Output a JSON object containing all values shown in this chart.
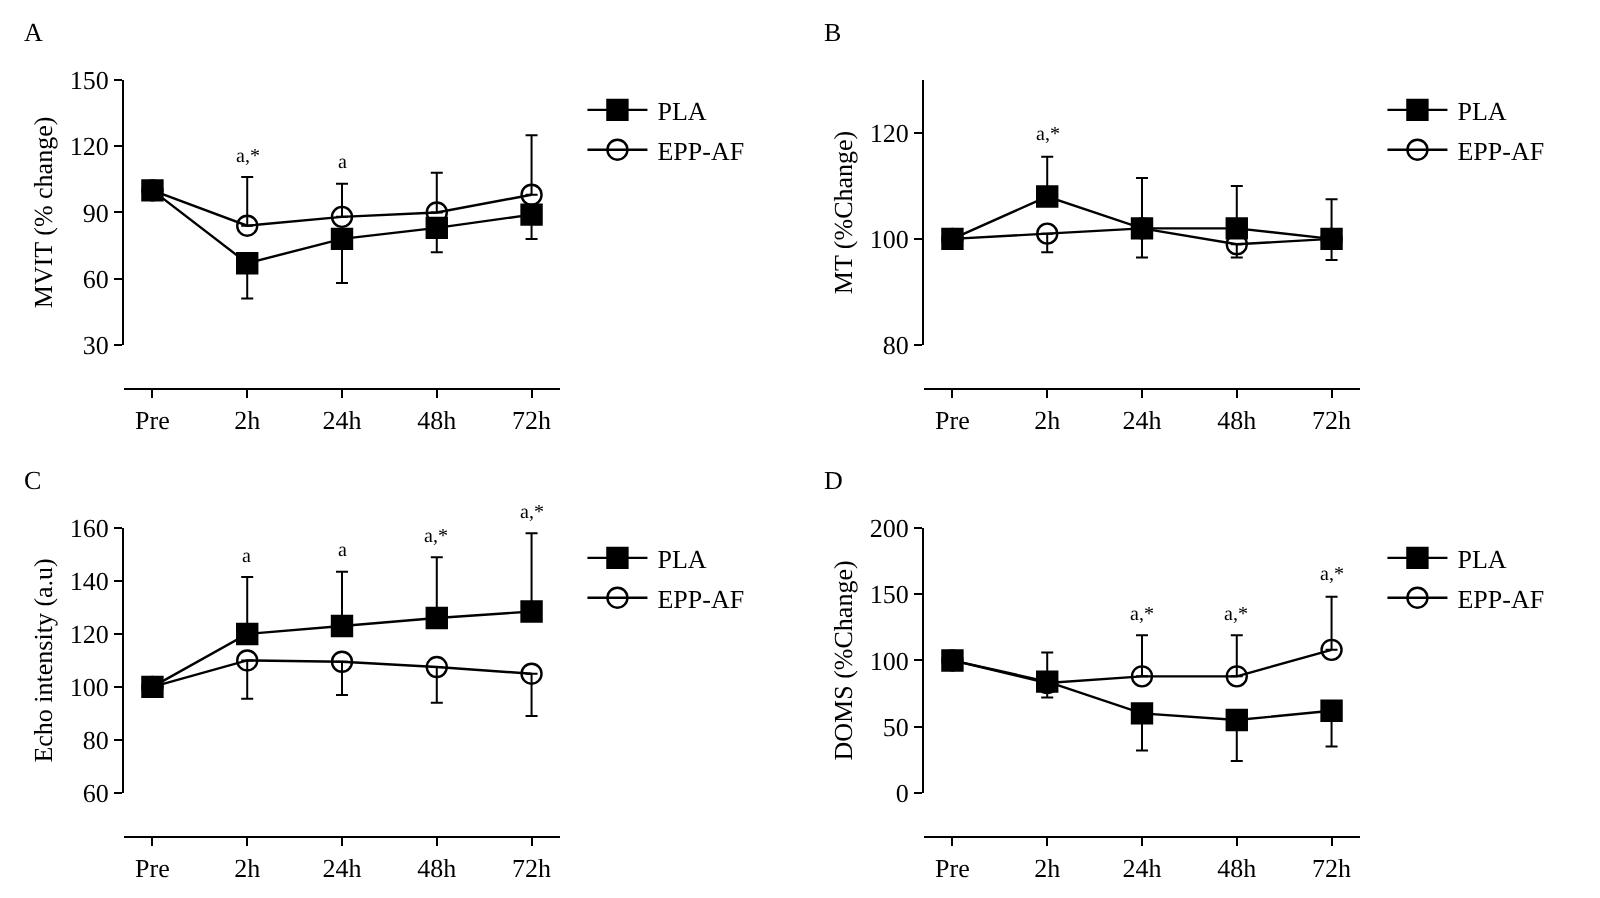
{
  "chart_data": [
    {
      "type": "line",
      "title": "A",
      "ylabel": "MVIT (% change)",
      "categories": [
        "Pre",
        "2h",
        "24h",
        "48h",
        "72h"
      ],
      "ylim": [
        30,
        150
      ],
      "yticks": [
        30,
        60,
        90,
        120,
        150
      ],
      "grid": false,
      "legend": "top right",
      "series": [
        {
          "name": "PLA",
          "color": "#000000",
          "marker": "square",
          "values": [
            100,
            67,
            78,
            83,
            89
          ],
          "errors": [
            null,
            [
              51,
              67
            ],
            [
              58,
              78
            ],
            [
              72,
              83
            ],
            [
              78,
              89
            ]
          ]
        },
        {
          "name": "EPP-AF",
          "color": "#000000",
          "marker": "circle",
          "values": [
            100,
            84,
            88,
            90,
            98
          ],
          "errors": [
            null,
            [
              84,
              106
            ],
            [
              88,
              103
            ],
            [
              90,
              108
            ],
            [
              98,
              125
            ]
          ]
        }
      ],
      "annotations": [
        {
          "text": "a,*",
          "x": "2h",
          "y": 106
        },
        {
          "text": "a",
          "x": "24h",
          "y": 103
        }
      ]
    },
    {
      "type": "line",
      "title": "B",
      "ylabel": "MT (%Change)",
      "categories": [
        "Pre",
        "2h",
        "24h",
        "48h",
        "72h"
      ],
      "ylim": [
        80,
        130
      ],
      "yticks": [
        80,
        100,
        120
      ],
      "grid": false,
      "legend": "top right",
      "series": [
        {
          "name": "PLA",
          "color": "#000000",
          "marker": "square",
          "values": [
            100,
            108,
            102,
            102,
            100
          ],
          "errors": [
            null,
            [
              108,
              115.5
            ],
            [
              102,
              111.5
            ],
            [
              102,
              110
            ],
            [
              100,
              107.5
            ]
          ]
        },
        {
          "name": "EPP-AF",
          "color": "#000000",
          "marker": "circle",
          "values": [
            100,
            101,
            102,
            99,
            100
          ],
          "errors": [
            null,
            [
              97.5,
              101
            ],
            [
              96.5,
              102
            ],
            [
              96.5,
              99
            ],
            [
              96,
              100
            ]
          ]
        }
      ],
      "annotations": [
        {
          "text": "a,*",
          "x": "2h",
          "y": 115.5
        }
      ]
    },
    {
      "type": "line",
      "title": "C",
      "ylabel": "Echo intensity (a.u)",
      "categories": [
        "Pre",
        "2h",
        "24h",
        "48h",
        "72h"
      ],
      "ylim": [
        60,
        160
      ],
      "yticks": [
        60,
        80,
        100,
        120,
        140,
        160
      ],
      "grid": false,
      "legend": "top right",
      "series": [
        {
          "name": "PLA",
          "color": "#000000",
          "marker": "square",
          "values": [
            100,
            120,
            123,
            126,
            128.5
          ],
          "errors": [
            null,
            [
              120,
              141.5
            ],
            [
              123,
              143.5
            ],
            [
              126,
              149
            ],
            [
              128.5,
              158
            ]
          ]
        },
        {
          "name": "EPP-AF",
          "color": "#000000",
          "marker": "circle",
          "values": [
            100,
            110,
            109.5,
            107.5,
            105
          ],
          "errors": [
            null,
            [
              95.5,
              110
            ],
            [
              97,
              109.5
            ],
            [
              94,
              107.5
            ],
            [
              89,
              105
            ]
          ]
        }
      ],
      "annotations": [
        {
          "text": "a",
          "x": "2h",
          "y": 141.5
        },
        {
          "text": "a",
          "x": "24h",
          "y": 143.5
        },
        {
          "text": "a,*",
          "x": "48h",
          "y": 149
        },
        {
          "text": "a,*",
          "x": "72h",
          "y": 158
        }
      ]
    },
    {
      "type": "line",
      "title": "D",
      "ylabel": "DOMS (%Change)",
      "categories": [
        "Pre",
        "2h",
        "24h",
        "48h",
        "72h"
      ],
      "ylim": [
        0,
        200
      ],
      "yticks": [
        0,
        50,
        100,
        150,
        200
      ],
      "grid": false,
      "legend": "top right",
      "series": [
        {
          "name": "PLA",
          "color": "#000000",
          "marker": "square",
          "values": [
            100,
            84,
            60,
            55,
            62
          ],
          "errors": [
            null,
            [
              72,
              84
            ],
            [
              32,
              60
            ],
            [
              24,
              55
            ],
            [
              35,
              62
            ]
          ]
        },
        {
          "name": "EPP-AF",
          "color": "#000000",
          "marker": "circle",
          "values": [
            100,
            83,
            88,
            88,
            108
          ],
          "errors": [
            null,
            [
              83,
              106
            ],
            [
              88,
              119
            ],
            [
              88,
              119
            ],
            [
              108,
              148
            ]
          ]
        }
      ],
      "annotations": [
        {
          "text": "a,*",
          "x": "24h",
          "y": 119
        },
        {
          "text": "a,*",
          "x": "48h",
          "y": 119
        },
        {
          "text": "a,*",
          "x": "72h",
          "y": 148
        }
      ]
    }
  ]
}
